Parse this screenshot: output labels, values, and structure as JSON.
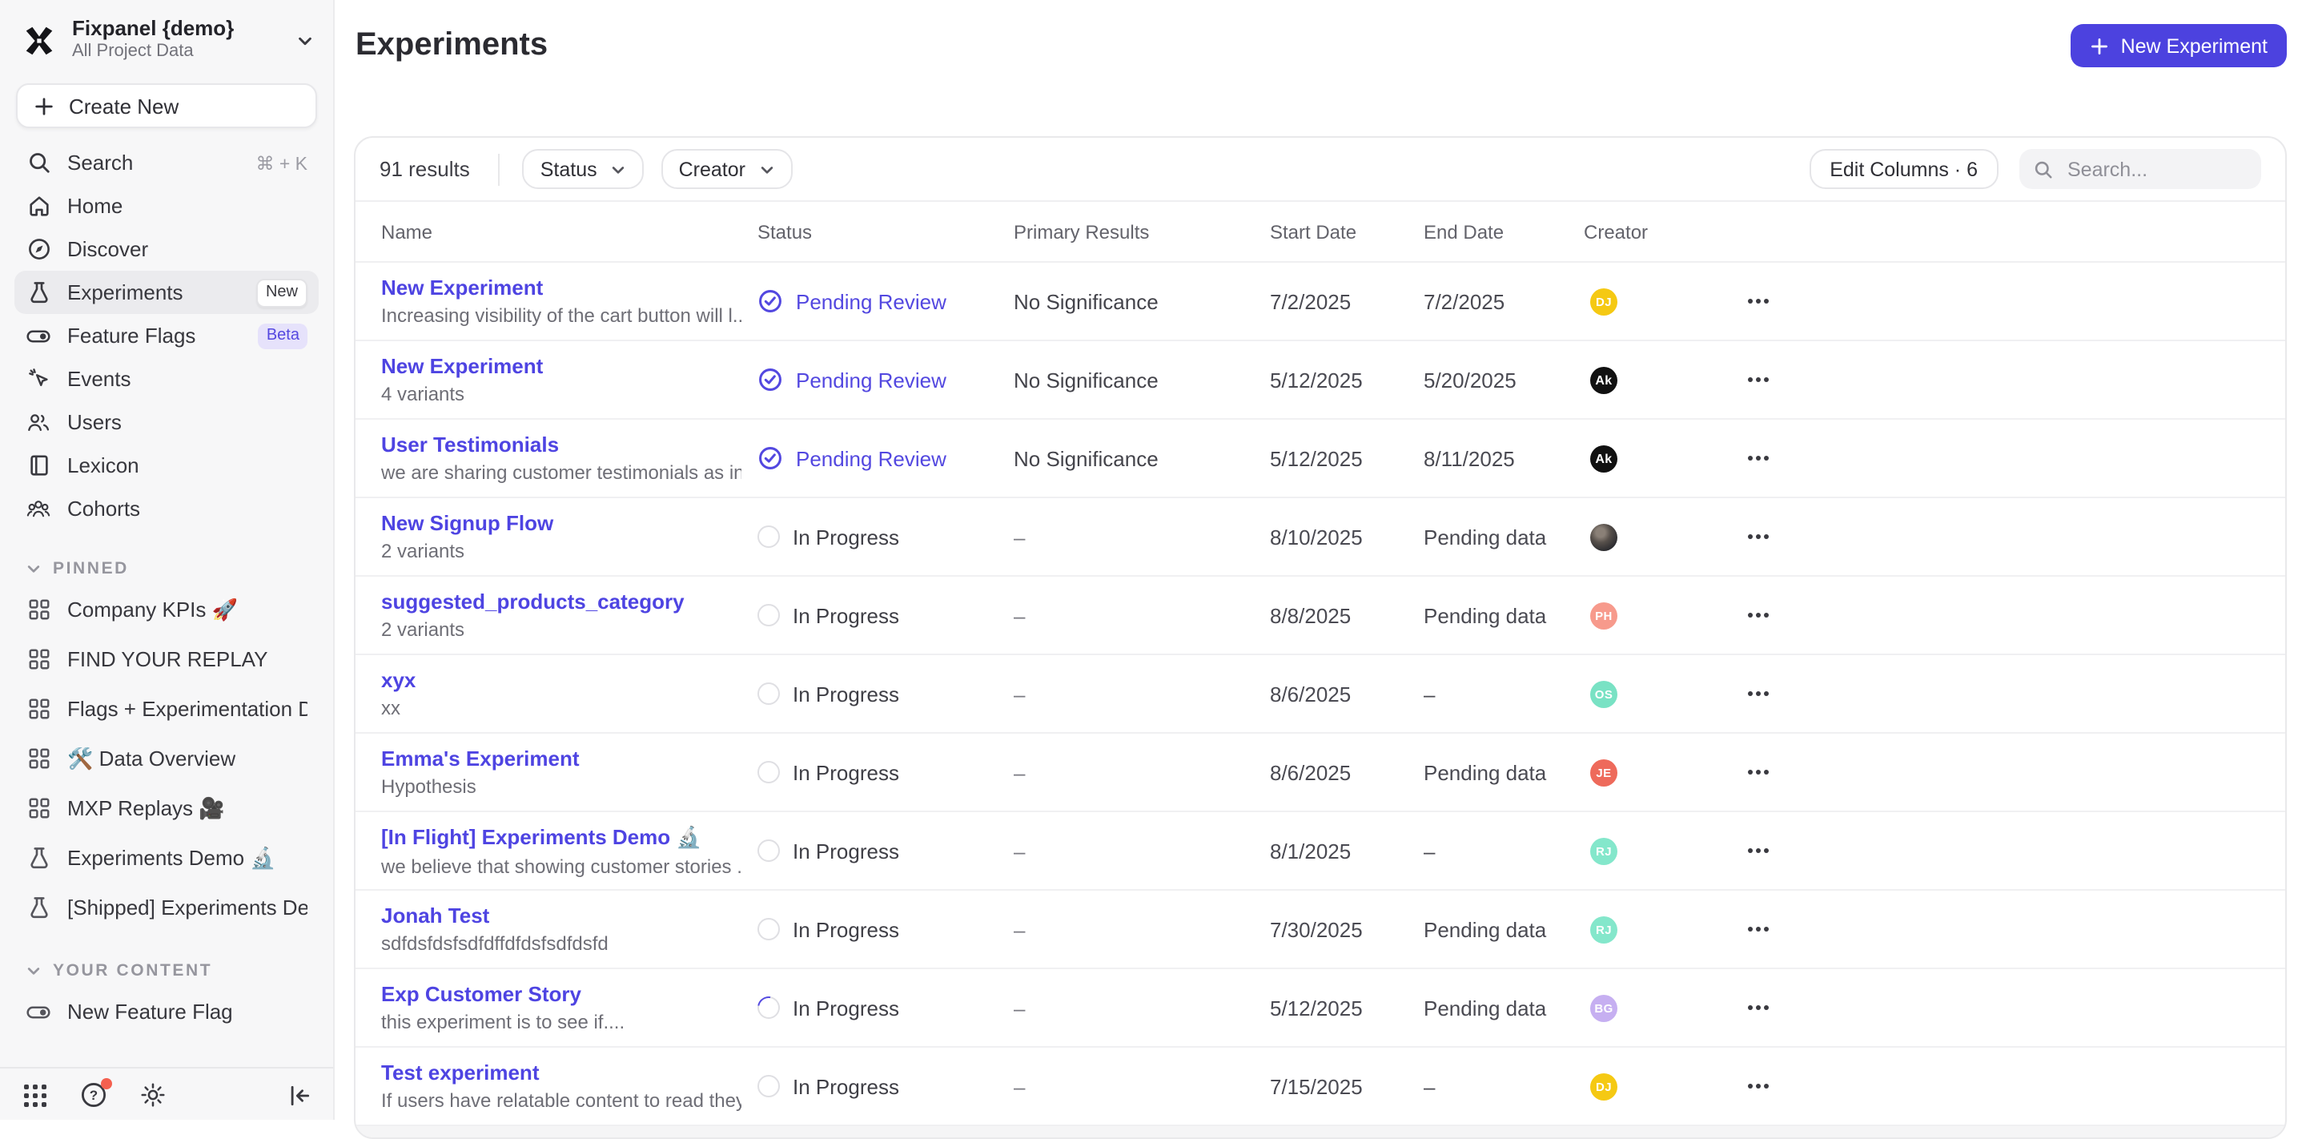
{
  "sidebar": {
    "workspace": {
      "name": "Fixpanel {demo}",
      "subtitle": "All Project Data"
    },
    "create_new_label": "Create New",
    "nav": [
      {
        "label": "Search",
        "icon": "search",
        "shortcut": "⌘ + K"
      },
      {
        "label": "Home",
        "icon": "home"
      },
      {
        "label": "Discover",
        "icon": "compass"
      },
      {
        "label": "Experiments",
        "icon": "flask",
        "badge": "New",
        "badge_style": "new",
        "active": true
      },
      {
        "label": "Feature Flags",
        "icon": "toggle",
        "badge": "Beta",
        "badge_style": "beta"
      },
      {
        "label": "Events",
        "icon": "cursor"
      },
      {
        "label": "Users",
        "icon": "users"
      },
      {
        "label": "Lexicon",
        "icon": "book"
      },
      {
        "label": "Cohorts",
        "icon": "cohorts"
      }
    ],
    "sections": [
      {
        "title": "PINNED",
        "items": [
          {
            "label": "Company KPIs 🚀",
            "icon": "board"
          },
          {
            "label": "FIND YOUR REPLAY",
            "icon": "board"
          },
          {
            "label": "Flags + Experimentation Demo",
            "icon": "board"
          },
          {
            "label": "🛠️ Data Overview",
            "icon": "board"
          },
          {
            "label": "MXP Replays 🎥",
            "icon": "board"
          },
          {
            "label": "Experiments Demo 🔬",
            "icon": "flask"
          },
          {
            "label": "[Shipped] Experiments Demo 🖊️",
            "icon": "flask"
          }
        ]
      },
      {
        "title": "YOUR CONTENT",
        "items": [
          {
            "label": "New Feature Flag",
            "icon": "toggle"
          }
        ]
      }
    ],
    "footer_icons": [
      "apps-grid",
      "help",
      "settings-gear",
      "collapse-sidebar"
    ]
  },
  "header": {
    "title": "Experiments",
    "new_experiment_label": "New Experiment"
  },
  "toolbar": {
    "results": "91 results",
    "filters": [
      "Status",
      "Creator"
    ],
    "edit_columns_label": "Edit Columns · 6",
    "search_placeholder": "Search..."
  },
  "table": {
    "columns": [
      "Name",
      "Status",
      "Primary Results",
      "Start Date",
      "End Date",
      "Creator"
    ],
    "rows": [
      {
        "name": "New Experiment",
        "subtitle": "Increasing visibility of the cart button will l...",
        "status": "Pending Review",
        "status_type": "pending",
        "primary": "No Significance",
        "start": "7/2/2025",
        "end": "7/2/2025",
        "avatar": {
          "kind": "initials",
          "text": "DJ",
          "bg": "#f5c913"
        }
      },
      {
        "name": "New Experiment",
        "subtitle": "4 variants",
        "status": "Pending Review",
        "status_type": "pending",
        "primary": "No Significance",
        "start": "5/12/2025",
        "end": "5/20/2025",
        "avatar": {
          "kind": "logo",
          "text": "Ak",
          "bg": "#111111"
        }
      },
      {
        "name": "User Testimonials",
        "subtitle": "we are sharing customer testimonials as in...",
        "status": "Pending Review",
        "status_type": "pending",
        "primary": "No Significance",
        "start": "5/12/2025",
        "end": "8/11/2025",
        "avatar": {
          "kind": "logo",
          "text": "Ak",
          "bg": "#111111"
        }
      },
      {
        "name": "New Signup Flow",
        "subtitle": "2 variants",
        "status": "In Progress",
        "status_type": "progress",
        "primary": "–",
        "start": "8/10/2025",
        "end": "Pending data",
        "avatar": {
          "kind": "photo",
          "text": "",
          "bg": ""
        }
      },
      {
        "name": "suggested_products_category",
        "subtitle": "2 variants",
        "status": "In Progress",
        "status_type": "progress",
        "primary": "–",
        "start": "8/8/2025",
        "end": "Pending data",
        "avatar": {
          "kind": "initials",
          "text": "PH",
          "bg": "#f79a8c"
        }
      },
      {
        "name": "xyx",
        "subtitle": "xx",
        "status": "In Progress",
        "status_type": "progress",
        "primary": "–",
        "start": "8/6/2025",
        "end": "–",
        "avatar": {
          "kind": "initials",
          "text": "OS",
          "bg": "#79e2c4"
        }
      },
      {
        "name": "Emma's Experiment",
        "subtitle": "Hypothesis",
        "status": "In Progress",
        "status_type": "progress",
        "primary": "–",
        "start": "8/6/2025",
        "end": "Pending data",
        "avatar": {
          "kind": "initials",
          "text": "JE",
          "bg": "#ee6a5b"
        }
      },
      {
        "name": "[In Flight] Experiments Demo 🔬",
        "subtitle": "we believe that showing customer stories ...",
        "status": "In Progress",
        "status_type": "progress",
        "primary": "–",
        "start": "8/1/2025",
        "end": "–",
        "avatar": {
          "kind": "initials",
          "text": "RJ",
          "bg": "#84e7cb"
        }
      },
      {
        "name": "Jonah Test",
        "subtitle": "sdfdsfdsfsdfdffdfdsfsdfdsfd",
        "status": "In Progress",
        "status_type": "progress",
        "primary": "–",
        "start": "7/30/2025",
        "end": "Pending data",
        "avatar": {
          "kind": "initials",
          "text": "RJ",
          "bg": "#84e7cb"
        }
      },
      {
        "name": "Exp Customer Story",
        "subtitle": "this experiment is to see if....",
        "status": "In Progress",
        "status_type": "progress-spin",
        "primary": "–",
        "start": "5/12/2025",
        "end": "Pending data",
        "avatar": {
          "kind": "initials",
          "text": "BG",
          "bg": "#c6aff1"
        }
      },
      {
        "name": "Test experiment",
        "subtitle": "If users have relatable content to read they...",
        "status": "In Progress",
        "status_type": "progress",
        "primary": "–",
        "start": "7/15/2025",
        "end": "–",
        "avatar": {
          "kind": "initials",
          "text": "DJ",
          "bg": "#f5c913"
        }
      }
    ]
  },
  "colors": {
    "accent": "#4c42df",
    "link": "#4e44e2",
    "pending_status": "#5348e0",
    "beta_badge_bg": "#e6e2fb",
    "sidebar_bg": "#f7f7f8",
    "avatar_yellow": "#f5c913",
    "avatar_salmon": "#f79a8c",
    "avatar_mint": "#79e2c4",
    "avatar_coral": "#ee6a5b",
    "avatar_lavender": "#c6aff1",
    "notification_dot": "#f4604f"
  }
}
